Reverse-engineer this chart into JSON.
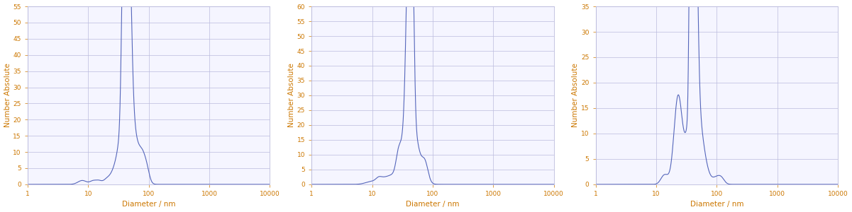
{
  "line_color": "#5566bb",
  "bg_color": "#f5f5ff",
  "ylabel": "Number Absolute",
  "xlabel": "Diameter / nm",
  "ylabel_color": "#cc7700",
  "xlabel_color": "#cc7700",
  "tick_color": "#cc7700",
  "grid_color": "#bbbbdd",
  "spine_color": "#bbbbdd",
  "plots": [
    {
      "ylim": [
        0,
        55
      ],
      "yticks": [
        0,
        5,
        10,
        15,
        20,
        25,
        30,
        35,
        40,
        45,
        50,
        55
      ]
    },
    {
      "ylim": [
        0,
        60
      ],
      "yticks": [
        0,
        5,
        10,
        15,
        20,
        25,
        30,
        35,
        40,
        45,
        50,
        55,
        60
      ]
    },
    {
      "ylim": [
        0,
        35
      ],
      "yticks": [
        0,
        5,
        10,
        15,
        20,
        25,
        30,
        35
      ]
    }
  ]
}
